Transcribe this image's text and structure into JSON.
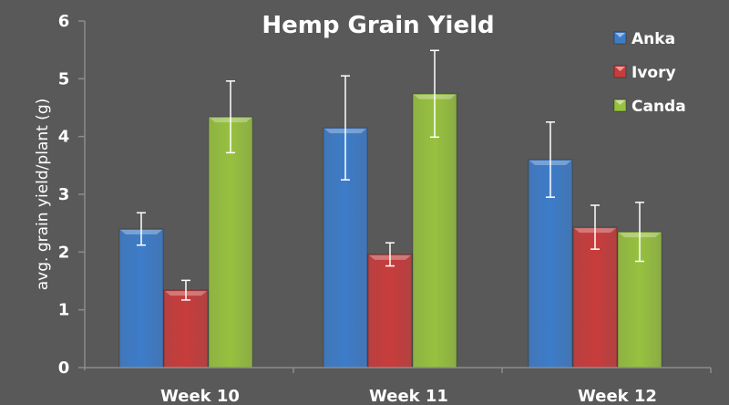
{
  "chart_data": {
    "type": "bar",
    "title": "Hemp Grain Yield",
    "xlabel": "",
    "ylabel": "avg. grain yield/plant (g)",
    "ylim": [
      0,
      6
    ],
    "yticks": [
      0,
      1,
      2,
      3,
      4,
      5,
      6
    ],
    "grid": false,
    "legend_position": "top-right",
    "categories": [
      "Week 10",
      "Week 11",
      "Week 12"
    ],
    "series": [
      {
        "name": "Anka",
        "color": "#3d7cc9",
        "values": [
          2.4,
          4.15,
          3.6
        ],
        "error": [
          0.28,
          0.9,
          0.65
        ]
      },
      {
        "name": "Ivory",
        "color": "#c83c3c",
        "values": [
          1.34,
          1.96,
          2.43
        ],
        "error": [
          0.17,
          0.2,
          0.38
        ]
      },
      {
        "name": "Canda",
        "color": "#97c13f",
        "values": [
          4.34,
          4.74,
          2.35
        ],
        "error": [
          0.62,
          0.75,
          0.51
        ]
      }
    ]
  },
  "colors": {
    "background": "#595959",
    "axis": "#8c8c8c",
    "text": "#ffffff"
  }
}
